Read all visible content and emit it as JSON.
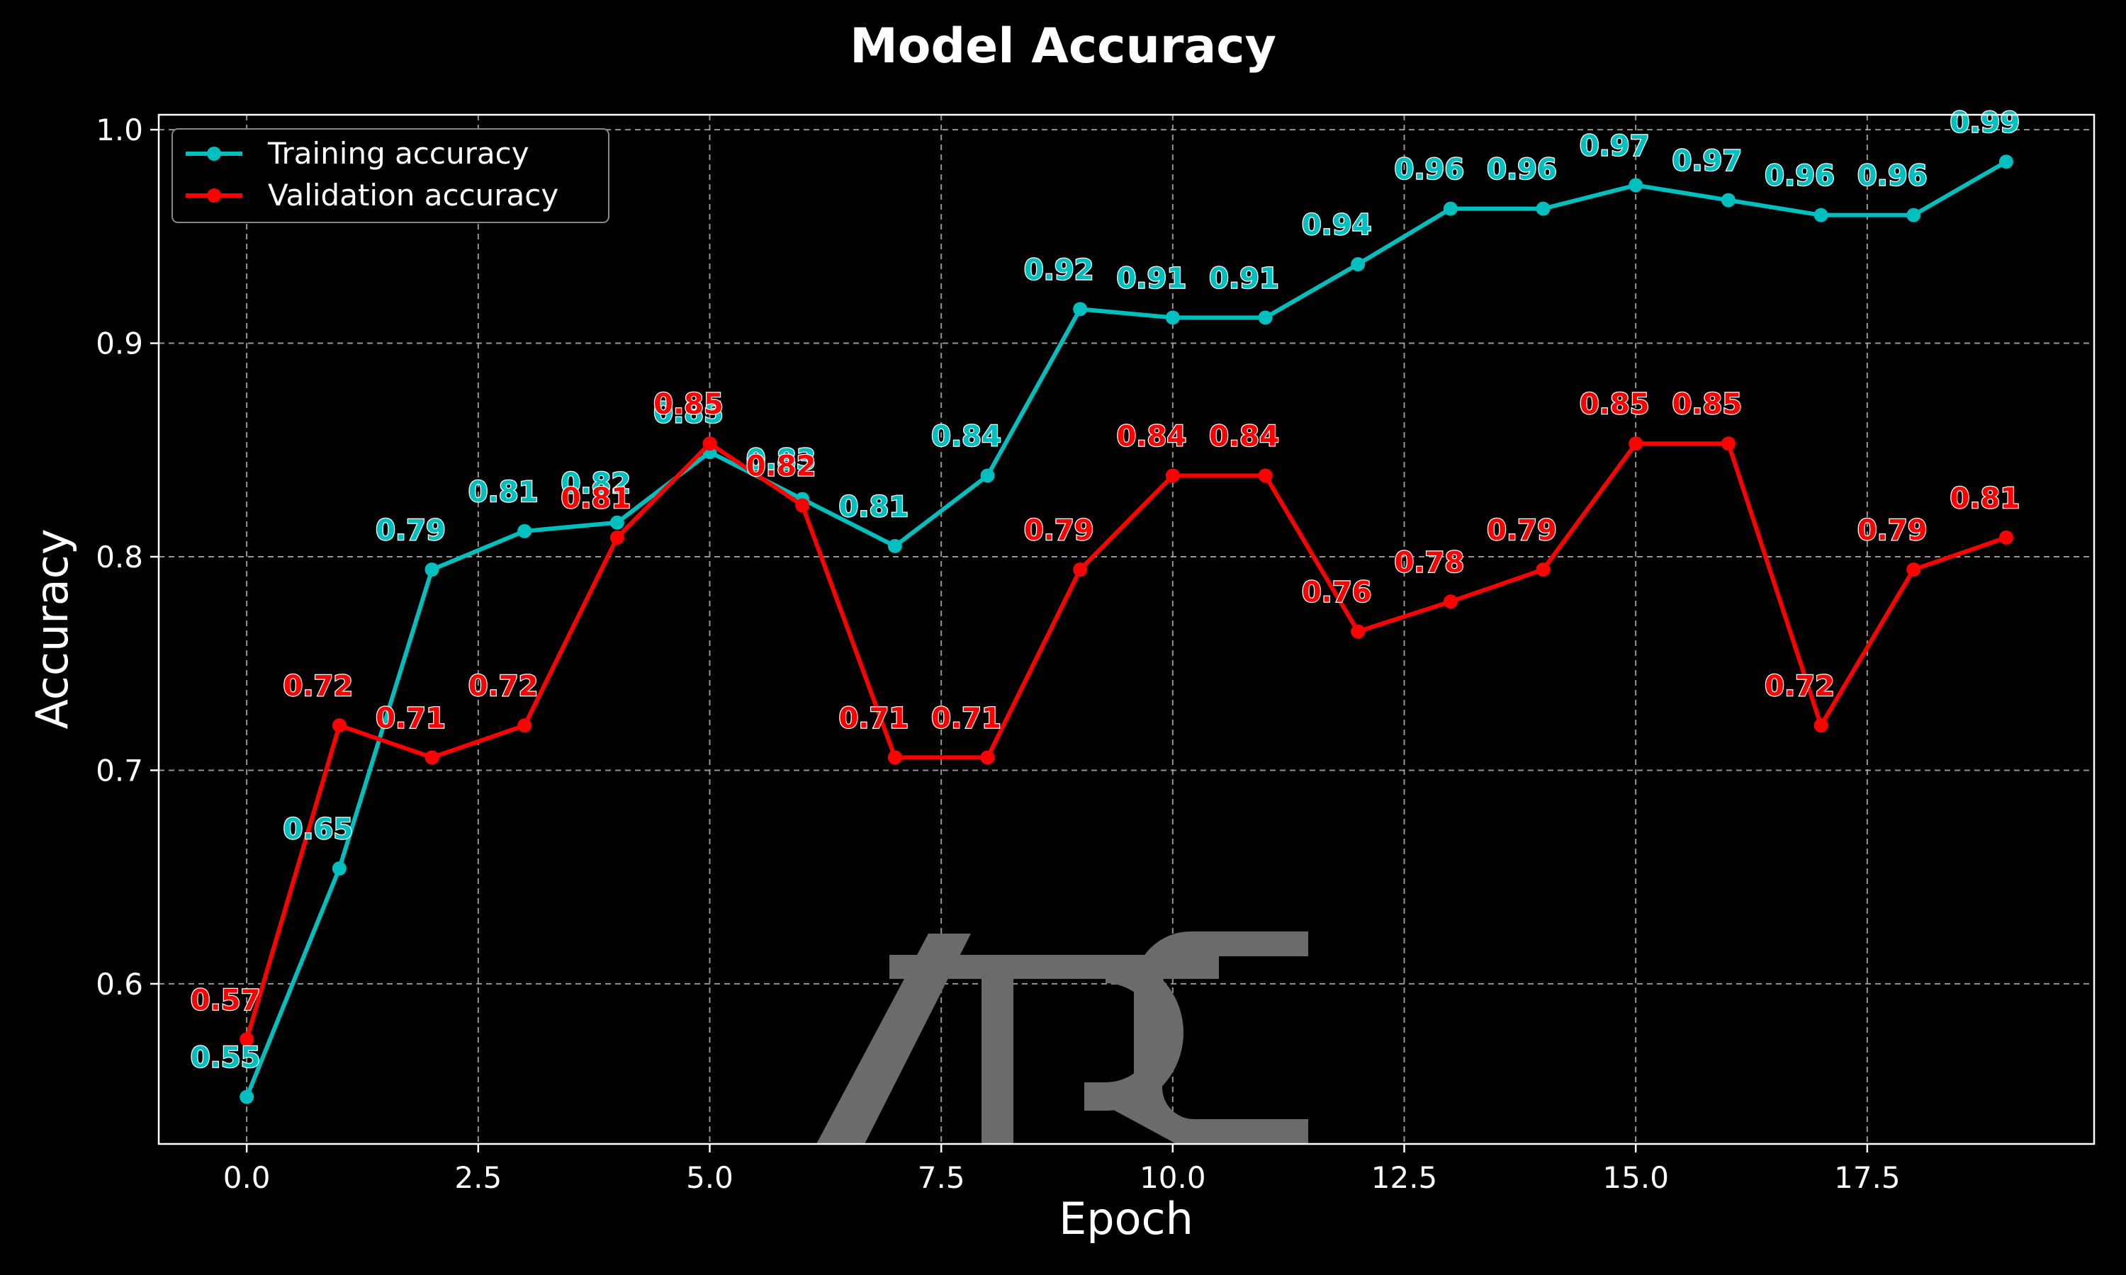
{
  "chart_data": {
    "type": "line",
    "title": "Model Accuracy",
    "xlabel": "Epoch",
    "ylabel": "Accuracy",
    "x": [
      0,
      1,
      2,
      3,
      4,
      5,
      6,
      7,
      8,
      9,
      10,
      11,
      12,
      13,
      14,
      15,
      16,
      17,
      18,
      19
    ],
    "xlim": [
      -0.95,
      19.95
    ],
    "ylim": [
      0.525,
      1.007
    ],
    "xticks": [
      0.0,
      2.5,
      5.0,
      7.5,
      10.0,
      12.5,
      15.0,
      17.5
    ],
    "xtick_labels": [
      "0.0",
      "2.5",
      "5.0",
      "7.5",
      "10.0",
      "12.5",
      "15.0",
      "17.5"
    ],
    "yticks": [
      0.6,
      0.7,
      0.8,
      0.9,
      1.0
    ],
    "ytick_labels": [
      "0.6",
      "0.7",
      "0.8",
      "0.9",
      "1.0"
    ],
    "grid": true,
    "legend_position": "top-left",
    "series": [
      {
        "name": "Training accuracy",
        "color": "#00bfbf",
        "label_color": "#00bfbf",
        "values": [
          0.547,
          0.654,
          0.794,
          0.812,
          0.816,
          0.849,
          0.827,
          0.805,
          0.838,
          0.916,
          0.912,
          0.912,
          0.937,
          0.963,
          0.963,
          0.974,
          0.967,
          0.96,
          0.96,
          0.985
        ],
        "labels": [
          "0.55",
          "0.65",
          "0.79",
          "0.81",
          "0.82",
          "0.85",
          "0.83",
          "0.81",
          "0.84",
          "0.92",
          "0.91",
          "0.91",
          "0.94",
          "0.96",
          "0.96",
          "0.97",
          "0.97",
          "0.96",
          "0.96",
          "0.99"
        ]
      },
      {
        "name": "Validation accuracy",
        "color": "#ff0000",
        "label_color": "#ff0000",
        "values": [
          0.574,
          0.721,
          0.706,
          0.721,
          0.809,
          0.853,
          0.824,
          0.706,
          0.706,
          0.794,
          0.838,
          0.838,
          0.765,
          0.779,
          0.794,
          0.853,
          0.853,
          0.721,
          0.794,
          0.809
        ],
        "labels": [
          "0.57",
          "0.72",
          "0.71",
          "0.72",
          "0.81",
          "0.85",
          "0.82",
          "0.71",
          "0.71",
          "0.79",
          "0.84",
          "0.84",
          "0.76",
          "0.78",
          "0.79",
          "0.85",
          "0.85",
          "0.72",
          "0.79",
          "0.81"
        ]
      }
    ]
  },
  "watermark": {
    "text": "ARC",
    "color": "#6b6b6b"
  }
}
